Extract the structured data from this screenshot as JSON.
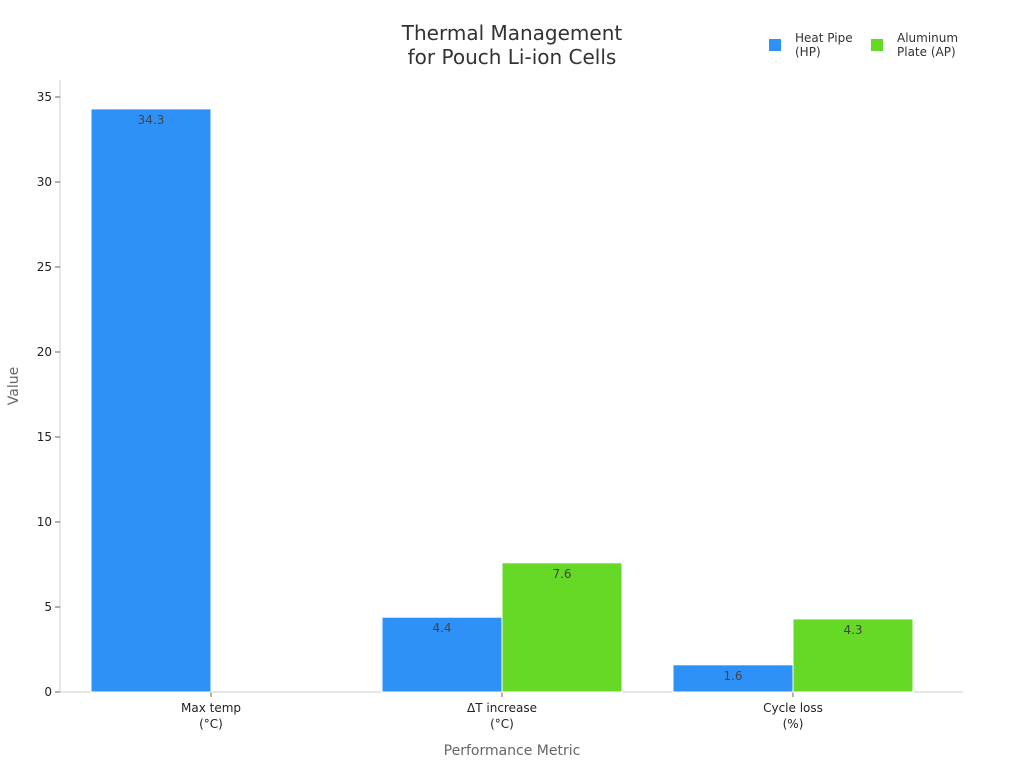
{
  "chart_data": {
    "type": "bar",
    "title": [
      "Thermal Management",
      "for Pouch Li-ion Cells"
    ],
    "xlabel": "Performance Metric",
    "ylabel": "Value",
    "ylim": [
      0,
      36
    ],
    "yticks": [
      0,
      5,
      10,
      15,
      20,
      25,
      30,
      35
    ],
    "categories": [
      [
        "Max temp",
        "(°C)"
      ],
      [
        "ΔT increase",
        "(°C)"
      ],
      [
        "Cycle loss",
        "(%)"
      ]
    ],
    "series": [
      {
        "name": [
          "Heat Pipe",
          "(HP)"
        ],
        "color": "#2e91f8",
        "values": [
          34.3,
          4.4,
          1.6
        ],
        "labels": [
          "34.3",
          "4.4",
          "1.6"
        ]
      },
      {
        "name": [
          "Aluminum",
          "Plate (AP)"
        ],
        "color": "#66d926",
        "values": [
          null,
          7.6,
          4.3
        ],
        "labels": [
          null,
          "7.6",
          "4.3"
        ]
      }
    ],
    "legend_position": "top-right",
    "grid": false
  }
}
